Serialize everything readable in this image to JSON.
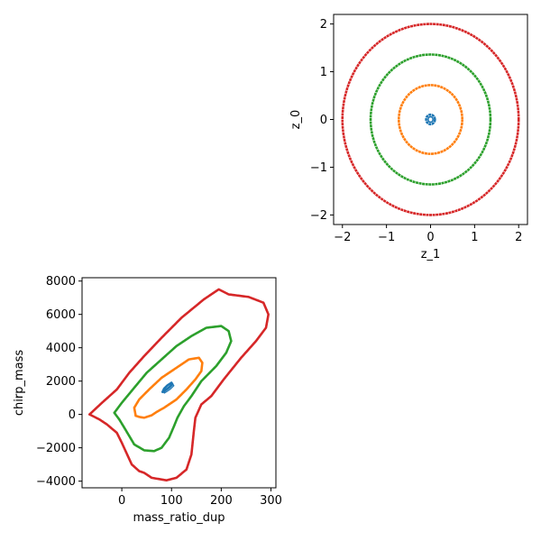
{
  "chart_data": [
    {
      "type": "scatter",
      "title": "",
      "xlabel": "z_1",
      "ylabel": "z_0",
      "xlim": [
        -2.2,
        2.2
      ],
      "ylim": [
        -2.2,
        2.2
      ],
      "xticks": [
        -2,
        -1,
        0,
        1,
        2
      ],
      "yticks": [
        -2,
        -1,
        0,
        1,
        2
      ],
      "xtick_labels": [
        "−2",
        "−1",
        "0",
        "1",
        "2"
      ],
      "ytick_labels": [
        "−2",
        "−1",
        "0",
        "1",
        "2"
      ],
      "grid": false,
      "series": [
        {
          "color": "#1f77b4",
          "shape": "ellipse",
          "center": [
            0,
            0
          ],
          "radius": [
            0.1,
            0.1
          ]
        },
        {
          "color": "#ff7f0e",
          "shape": "ellipse",
          "center": [
            0,
            0
          ],
          "radius": [
            0.72,
            0.72
          ]
        },
        {
          "color": "#2ca02c",
          "shape": "ellipse",
          "center": [
            0,
            0
          ],
          "radius": [
            1.36,
            1.36
          ]
        },
        {
          "color": "#d62728",
          "shape": "ellipse",
          "center": [
            0,
            0
          ],
          "radius": [
            2.0,
            2.0
          ]
        }
      ]
    },
    {
      "type": "scatter",
      "title": "",
      "xlabel": "mass_ratio_dup",
      "ylabel": "chirp_mass",
      "xlim": [
        -80,
        310
      ],
      "ylim": [
        -4400,
        8200
      ],
      "xticks": [
        0,
        100,
        200,
        300
      ],
      "yticks": [
        -4000,
        -2000,
        0,
        2000,
        4000,
        6000,
        8000
      ],
      "xtick_labels": [
        "0",
        "100",
        "200",
        "300"
      ],
      "ytick_labels": [
        "−4000",
        "−2000",
        "0",
        "2000",
        "4000",
        "6000",
        "8000"
      ],
      "grid": false,
      "series": [
        {
          "color": "#1f77b4",
          "shape": "polyline",
          "points": [
            [
              82,
              1350
            ],
            [
              88,
              1450
            ],
            [
              95,
              1600
            ],
            [
              102,
              1800
            ],
            [
              100,
              1900
            ],
            [
              92,
              1750
            ],
            [
              85,
              1550
            ],
            [
              82,
              1350
            ]
          ]
        },
        {
          "color": "#ff7f0e",
          "shape": "polyline",
          "points": [
            [
              28,
              -80
            ],
            [
              25,
              400
            ],
            [
              35,
              900
            ],
            [
              55,
              1500
            ],
            [
              80,
              2200
            ],
            [
              110,
              2800
            ],
            [
              135,
              3300
            ],
            [
              155,
              3400
            ],
            [
              162,
              3100
            ],
            [
              160,
              2600
            ],
            [
              148,
              2100
            ],
            [
              130,
              1500
            ],
            [
              110,
              900
            ],
            [
              85,
              400
            ],
            [
              70,
              150
            ],
            [
              60,
              -50
            ],
            [
              45,
              -200
            ],
            [
              35,
              -150
            ],
            [
              28,
              -80
            ]
          ]
        },
        {
          "color": "#2ca02c",
          "shape": "polyline",
          "points": [
            [
              -15,
              100
            ],
            [
              0,
              700
            ],
            [
              25,
              1600
            ],
            [
              50,
              2500
            ],
            [
              80,
              3300
            ],
            [
              110,
              4100
            ],
            [
              140,
              4700
            ],
            [
              170,
              5200
            ],
            [
              200,
              5300
            ],
            [
              215,
              5000
            ],
            [
              220,
              4400
            ],
            [
              210,
              3700
            ],
            [
              190,
              2900
            ],
            [
              160,
              2000
            ],
            [
              140,
              1100
            ],
            [
              125,
              500
            ],
            [
              112,
              -200
            ],
            [
              105,
              -700
            ],
            [
              95,
              -1400
            ],
            [
              80,
              -2000
            ],
            [
              65,
              -2200
            ],
            [
              45,
              -2150
            ],
            [
              25,
              -1800
            ],
            [
              5,
              -800
            ],
            [
              -5,
              -300
            ],
            [
              -15,
              100
            ]
          ]
        },
        {
          "color": "#d62728",
          "shape": "polyline",
          "points": [
            [
              -65,
              0
            ],
            [
              -40,
              700
            ],
            [
              -10,
              1500
            ],
            [
              15,
              2500
            ],
            [
              45,
              3500
            ],
            [
              80,
              4600
            ],
            [
              120,
              5800
            ],
            [
              165,
              6900
            ],
            [
              195,
              7500
            ],
            [
              215,
              7200
            ],
            [
              255,
              7050
            ],
            [
              285,
              6700
            ],
            [
              295,
              6000
            ],
            [
              290,
              5200
            ],
            [
              270,
              4400
            ],
            [
              240,
              3400
            ],
            [
              205,
              2100
            ],
            [
              180,
              1100
            ],
            [
              160,
              600
            ],
            [
              148,
              -200
            ],
            [
              145,
              -1000
            ],
            [
              140,
              -2400
            ],
            [
              130,
              -3300
            ],
            [
              110,
              -3800
            ],
            [
              90,
              -3950
            ],
            [
              60,
              -3800
            ],
            [
              45,
              -3500
            ],
            [
              35,
              -3400
            ],
            [
              20,
              -3000
            ],
            [
              0,
              -1700
            ],
            [
              -10,
              -1100
            ],
            [
              -30,
              -600
            ],
            [
              -45,
              -300
            ],
            [
              -65,
              0
            ]
          ]
        }
      ]
    }
  ]
}
